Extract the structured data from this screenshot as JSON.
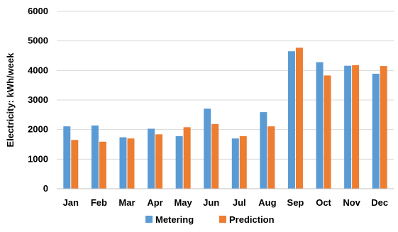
{
  "chart_data": {
    "type": "bar",
    "categories": [
      "Jan",
      "Feb",
      "Mar",
      "Apr",
      "May",
      "Jun",
      "Jul",
      "Aug",
      "Sep",
      "Oct",
      "Nov",
      "Dec"
    ],
    "series": [
      {
        "name": "Metering",
        "color": "#5b9bd5",
        "values": [
          2110,
          2140,
          1740,
          2030,
          1780,
          2710,
          1700,
          2590,
          4650,
          4280,
          4160,
          3890
        ]
      },
      {
        "name": "Prediction",
        "color": "#ed7d31",
        "values": [
          1650,
          1590,
          1700,
          1840,
          2080,
          2190,
          1780,
          2110,
          4770,
          3830,
          4180,
          4150
        ]
      }
    ],
    "ylabel": "Electricity: kWh/week",
    "ylim": [
      0,
      6000
    ],
    "yticks": [
      0,
      1000,
      2000,
      3000,
      4000,
      5000,
      6000
    ],
    "grid": true,
    "legend": "bottom"
  }
}
